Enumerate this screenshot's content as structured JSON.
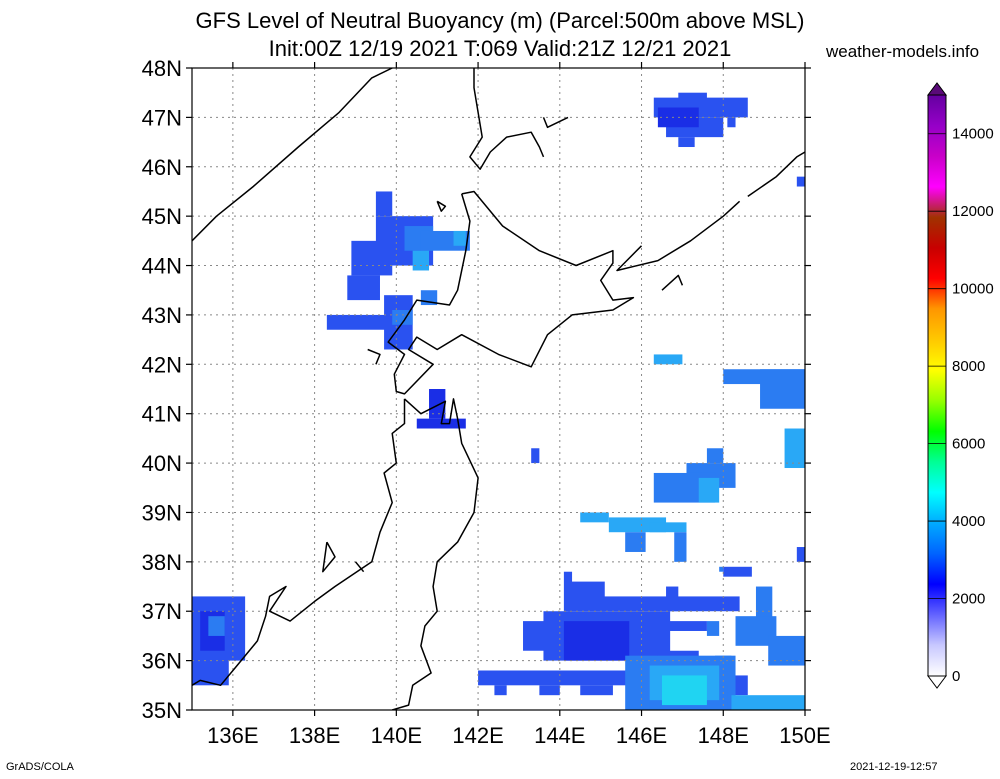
{
  "title": {
    "line1": "GFS Level of Neutral Buoyancy (m) (Parcel:500m above MSL)",
    "line2": "Init:00Z 12/19 2021 T:069 Valid:21Z 12/21 2021"
  },
  "site": "weather-models.info",
  "footer": {
    "left": "GrADS/COLA",
    "right": "2021-12-19-12:57"
  },
  "map": {
    "lon_range": [
      135,
      150
    ],
    "lat_range": [
      35,
      48
    ],
    "lat_labels": [
      "35N",
      "36N",
      "37N",
      "38N",
      "39N",
      "40N",
      "41N",
      "42N",
      "43N",
      "44N",
      "45N",
      "46N",
      "47N",
      "48N"
    ],
    "lon_labels": [
      "136E",
      "138E",
      "140E",
      "142E",
      "144E",
      "146E",
      "148E",
      "150E"
    ],
    "lon_values": [
      136,
      138,
      140,
      142,
      144,
      146,
      148,
      150
    ],
    "lat_values": [
      35,
      36,
      37,
      38,
      39,
      40,
      41,
      42,
      43,
      44,
      45,
      46,
      47,
      48
    ]
  },
  "colorbar": {
    "labels": [
      "0",
      "2000",
      "4000",
      "6000",
      "8000",
      "10000",
      "12000",
      "14000"
    ],
    "values": [
      0,
      2000,
      4000,
      6000,
      8000,
      10000,
      12000,
      14000
    ],
    "max": 15000,
    "stops": [
      "#ffffff",
      "#c8c8ff",
      "#6464ff",
      "#0000ff",
      "#0064ff",
      "#00aaff",
      "#00ffff",
      "#00ff96",
      "#00ff00",
      "#96ff00",
      "#ffff00",
      "#ffc800",
      "#ff9600",
      "#ff0000",
      "#c80000",
      "#a03200",
      "#ff00ff",
      "#c800c8",
      "#9600c8",
      "#6400a0"
    ]
  },
  "colors": {
    "blue_dark": "#1a2ee6",
    "blue": "#2a52f0",
    "blue_mid": "#2b7cf2",
    "blue_light": "#29a8f6",
    "cyan": "#20d4f2"
  },
  "fields": [
    {
      "c": "blue",
      "r": [
        [
          146.9,
          47.5,
          147.6,
          47.2
        ],
        [
          146.3,
          47.4,
          148.6,
          47.0
        ],
        [
          146.6,
          47.0,
          148.0,
          46.6
        ],
        [
          146.9,
          46.6,
          147.3,
          46.4
        ],
        [
          148.1,
          47.0,
          148.3,
          46.8
        ]
      ]
    },
    {
      "c": "blue_dark",
      "r": [
        [
          146.4,
          47.2,
          147.4,
          46.8
        ]
      ]
    },
    {
      "c": "blue",
      "r": [
        [
          149.8,
          45.8,
          150.0,
          45.6
        ]
      ]
    },
    {
      "c": "blue",
      "r": [
        [
          139.5,
          45.5,
          139.9,
          45.0
        ],
        [
          139.5,
          45.0,
          140.9,
          44.0
        ],
        [
          138.9,
          44.5,
          139.9,
          43.8
        ],
        [
          138.8,
          43.8,
          139.6,
          43.3
        ],
        [
          138.3,
          43.0,
          140.3,
          42.7
        ],
        [
          139.7,
          43.4,
          140.4,
          42.3
        ]
      ]
    },
    {
      "c": "blue_mid",
      "r": [
        [
          140.2,
          44.8,
          140.9,
          44.3
        ],
        [
          140.6,
          44.7,
          141.8,
          44.3
        ]
      ]
    },
    {
      "c": "blue_light",
      "r": [
        [
          140.4,
          44.3,
          140.8,
          43.9
        ],
        [
          141.4,
          44.7,
          141.7,
          44.4
        ]
      ]
    },
    {
      "c": "blue_mid",
      "r": [
        [
          140.6,
          43.5,
          141.0,
          43.2
        ],
        [
          139.9,
          43.1,
          140.4,
          42.8
        ]
      ]
    },
    {
      "c": "blue_dark",
      "r": [
        [
          140.8,
          41.5,
          141.2,
          40.9
        ],
        [
          140.5,
          40.9,
          141.7,
          40.7
        ]
      ]
    },
    {
      "c": "blue_light",
      "r": [
        [
          146.3,
          42.2,
          147.0,
          42.0
        ]
      ]
    },
    {
      "c": "blue_mid",
      "r": [
        [
          148.0,
          41.9,
          150.0,
          41.6
        ],
        [
          148.9,
          41.9,
          150.0,
          41.1
        ]
      ]
    },
    {
      "c": "blue_light",
      "r": [
        [
          149.5,
          40.7,
          150.0,
          39.9
        ]
      ]
    },
    {
      "c": "blue",
      "r": [
        [
          143.3,
          40.3,
          143.5,
          40.0
        ]
      ]
    },
    {
      "c": "blue_mid",
      "r": [
        [
          147.6,
          40.3,
          148.0,
          40.0
        ],
        [
          147.1,
          40.0,
          148.3,
          39.5
        ],
        [
          146.3,
          39.8,
          147.8,
          39.2
        ],
        [
          147.9,
          39.6,
          148.3,
          39.5
        ]
      ]
    },
    {
      "c": "blue_light",
      "r": [
        [
          147.4,
          39.7,
          147.9,
          39.2
        ]
      ]
    },
    {
      "c": "blue_light",
      "r": [
        [
          144.5,
          39.0,
          145.2,
          38.8
        ],
        [
          145.2,
          38.9,
          146.6,
          38.6
        ],
        [
          146.2,
          38.8,
          147.1,
          38.6
        ]
      ]
    },
    {
      "c": "blue_mid",
      "r": [
        [
          145.6,
          38.6,
          146.1,
          38.2
        ],
        [
          146.8,
          38.6,
          147.1,
          38.0
        ],
        [
          147.9,
          37.9,
          148.0,
          37.8
        ]
      ]
    },
    {
      "c": "blue",
      "r": [
        [
          148.0,
          37.9,
          148.7,
          37.7
        ],
        [
          149.8,
          38.3,
          150.0,
          38.0
        ]
      ]
    },
    {
      "c": "blue",
      "r": [
        [
          144.1,
          37.8,
          144.3,
          37.0
        ],
        [
          144.2,
          37.6,
          145.1,
          37.0
        ],
        [
          145.0,
          37.3,
          148.4,
          37.0
        ],
        [
          146.6,
          37.5,
          146.9,
          37.0
        ],
        [
          143.6,
          37.0,
          146.7,
          36.0
        ],
        [
          146.6,
          36.8,
          147.6,
          36.6
        ],
        [
          143.1,
          36.8,
          144.3,
          36.2
        ]
      ]
    },
    {
      "c": "blue_dark",
      "r": [
        [
          144.1,
          36.8,
          145.7,
          36.0
        ]
      ]
    },
    {
      "c": "blue_mid",
      "r": [
        [
          148.8,
          37.5,
          149.2,
          36.8
        ],
        [
          148.3,
          36.9,
          149.3,
          36.3
        ],
        [
          149.1,
          36.5,
          150.0,
          35.9
        ],
        [
          147.6,
          36.8,
          147.9,
          36.5
        ],
        [
          147.8,
          36.1,
          148.2,
          35.7
        ]
      ]
    },
    {
      "c": "blue",
      "r": [
        [
          142.0,
          35.8,
          146.3,
          35.5
        ],
        [
          142.4,
          35.5,
          142.7,
          35.3
        ],
        [
          143.5,
          35.5,
          144.0,
          35.3
        ],
        [
          144.5,
          35.5,
          145.3,
          35.3
        ],
        [
          146.4,
          36.2,
          147.4,
          35.9
        ],
        [
          148.2,
          35.7,
          148.6,
          35.3
        ]
      ]
    },
    {
      "c": "blue_mid",
      "r": [
        [
          145.6,
          36.1,
          148.3,
          35.0
        ],
        [
          146.2,
          35.5,
          148.1,
          35.0
        ]
      ]
    },
    {
      "c": "blue_light",
      "r": [
        [
          146.2,
          35.9,
          147.9,
          35.2
        ],
        [
          148.2,
          35.3,
          150.0,
          35.0
        ]
      ]
    },
    {
      "c": "cyan",
      "r": [
        [
          146.5,
          35.7,
          147.6,
          35.1
        ]
      ]
    },
    {
      "c": "blue",
      "r": [
        [
          135.0,
          37.3,
          136.3,
          36.0
        ],
        [
          135.0,
          36.2,
          135.9,
          35.5
        ],
        [
          136.1,
          37.0,
          136.2,
          36.5
        ]
      ]
    },
    {
      "c": "blue_dark",
      "r": [
        [
          135.2,
          37.0,
          135.8,
          36.2
        ]
      ]
    },
    {
      "c": "blue_mid",
      "r": [
        [
          135.4,
          36.9,
          135.8,
          36.5
        ]
      ]
    }
  ],
  "coastlines": [
    [
      [
        135.0,
        44.5
      ],
      [
        135.6,
        45.0
      ],
      [
        136.5,
        45.6
      ],
      [
        137.6,
        46.4
      ],
      [
        138.6,
        47.1
      ],
      [
        139.4,
        47.8
      ],
      [
        139.9,
        48.0
      ]
    ],
    [
      [
        141.9,
        48.0
      ],
      [
        141.9,
        47.6
      ],
      [
        142.0,
        47.1
      ],
      [
        142.1,
        46.6
      ],
      [
        141.8,
        46.2
      ],
      [
        142.05,
        45.95
      ],
      [
        142.3,
        46.3
      ],
      [
        142.7,
        46.6
      ],
      [
        143.3,
        46.7
      ],
      [
        143.5,
        46.4
      ],
      [
        143.6,
        46.2
      ]
    ],
    [
      [
        144.2,
        47.0
      ],
      [
        143.7,
        46.8
      ],
      [
        143.6,
        47.0
      ]
    ],
    [
      [
        141.6,
        45.45
      ],
      [
        141.9,
        45.5
      ],
      [
        142.6,
        44.8
      ],
      [
        143.5,
        44.3
      ],
      [
        144.4,
        44.0
      ],
      [
        145.3,
        44.3
      ],
      [
        145.3,
        44.05
      ],
      [
        145.0,
        43.7
      ],
      [
        145.3,
        43.3
      ],
      [
        145.8,
        43.35
      ],
      [
        145.3,
        43.1
      ],
      [
        144.3,
        43.0
      ],
      [
        143.7,
        42.6
      ],
      [
        143.3,
        41.95
      ],
      [
        142.5,
        42.2
      ],
      [
        141.6,
        42.6
      ],
      [
        141.0,
        42.3
      ],
      [
        140.5,
        42.55
      ],
      [
        140.3,
        42.3
      ],
      [
        140.9,
        42.0
      ],
      [
        140.2,
        41.4
      ],
      [
        140.0,
        41.45
      ],
      [
        139.95,
        41.8
      ],
      [
        140.2,
        42.2
      ],
      [
        139.8,
        42.45
      ],
      [
        140.2,
        42.9
      ],
      [
        140.5,
        43.3
      ],
      [
        141.3,
        43.2
      ],
      [
        141.5,
        43.5
      ],
      [
        141.7,
        44.3
      ],
      [
        141.8,
        44.9
      ],
      [
        141.6,
        45.45
      ]
    ],
    [
      [
        140.2,
        41.3
      ],
      [
        140.6,
        41.0
      ],
      [
        141.2,
        41.25
      ],
      [
        141.1,
        40.8
      ],
      [
        141.3,
        40.8
      ],
      [
        141.4,
        41.3
      ],
      [
        141.5,
        40.9
      ],
      [
        141.6,
        40.4
      ],
      [
        142.0,
        39.7
      ],
      [
        141.9,
        39.0
      ],
      [
        141.5,
        38.4
      ],
      [
        141.0,
        38.0
      ],
      [
        140.9,
        37.5
      ],
      [
        141.0,
        37.0
      ],
      [
        140.7,
        36.7
      ],
      [
        140.6,
        36.3
      ],
      [
        140.85,
        35.75
      ],
      [
        140.4,
        35.5
      ],
      [
        140.3,
        35.1
      ],
      [
        139.9,
        35.0
      ]
    ],
    [
      [
        140.2,
        41.3
      ],
      [
        140.2,
        40.8
      ],
      [
        139.9,
        40.6
      ],
      [
        140.0,
        40.0
      ],
      [
        139.7,
        39.8
      ],
      [
        139.9,
        39.2
      ],
      [
        139.6,
        38.6
      ],
      [
        139.4,
        38.0
      ],
      [
        138.5,
        37.5
      ],
      [
        138.0,
        37.2
      ],
      [
        137.4,
        36.8
      ],
      [
        136.9,
        37.0
      ],
      [
        137.3,
        37.5
      ],
      [
        136.9,
        37.3
      ],
      [
        136.8,
        36.9
      ],
      [
        136.6,
        36.4
      ],
      [
        136.1,
        35.9
      ],
      [
        135.7,
        35.5
      ],
      [
        135.2,
        35.6
      ],
      [
        135.0,
        35.5
      ]
    ],
    [
      [
        138.3,
        38.4
      ],
      [
        138.5,
        38.1
      ],
      [
        138.2,
        37.8
      ],
      [
        138.3,
        38.4
      ]
    ],
    [
      [
        141.0,
        45.3
      ],
      [
        141.2,
        45.2
      ],
      [
        141.1,
        45.1
      ],
      [
        141.0,
        45.3
      ]
    ],
    [
      [
        146.0,
        44.4
      ],
      [
        145.4,
        43.9
      ],
      [
        146.4,
        44.1
      ],
      [
        147.2,
        44.5
      ],
      [
        148.0,
        45.0
      ],
      [
        148.4,
        45.3
      ]
    ],
    [
      [
        148.6,
        45.4
      ],
      [
        149.3,
        45.8
      ],
      [
        149.8,
        46.2
      ],
      [
        150.0,
        46.3
      ]
    ],
    [
      [
        146.5,
        43.5
      ],
      [
        146.9,
        43.8
      ],
      [
        147.0,
        43.6
      ]
    ],
    [
      [
        139.3,
        42.3
      ],
      [
        139.6,
        42.2
      ],
      [
        139.5,
        42.0
      ]
    ],
    [
      [
        139.0,
        38.0
      ],
      [
        139.2,
        37.8
      ]
    ]
  ]
}
